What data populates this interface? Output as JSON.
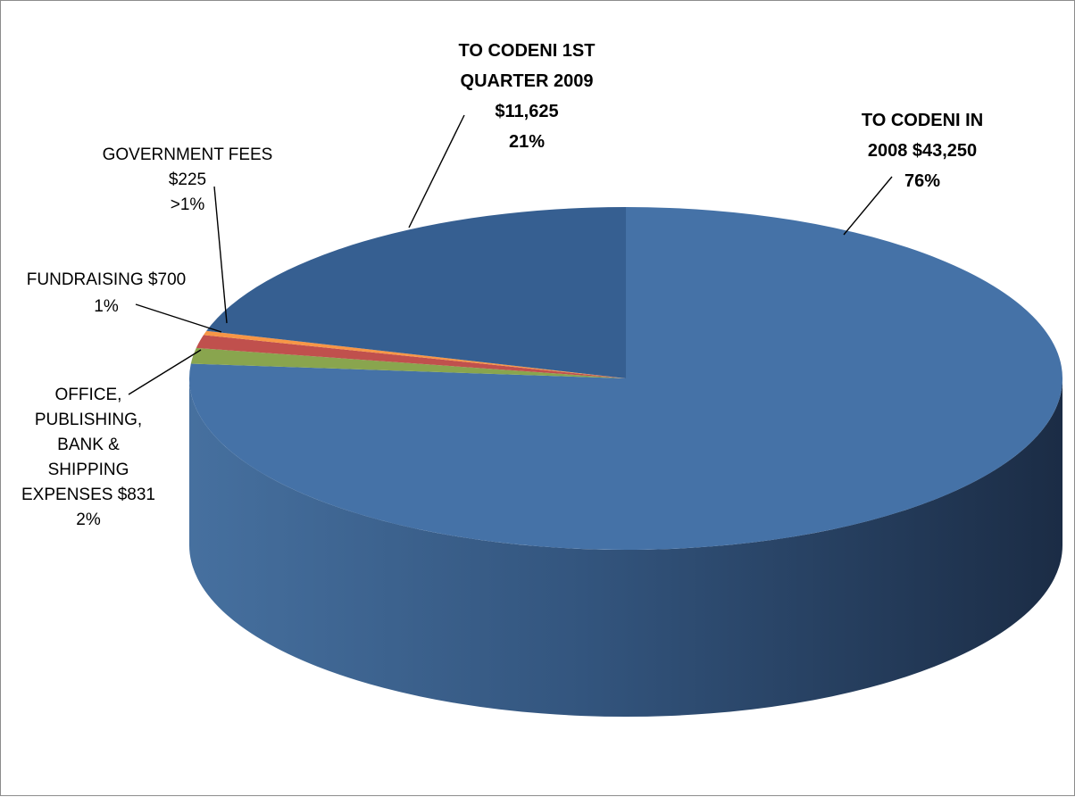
{
  "chart_data": {
    "type": "pie",
    "title": "",
    "start_angle_deg": -90,
    "slices": [
      {
        "key": "codeni-2008",
        "value": 43250,
        "label_lines": [
          "TO CODENI IN",
          "2008 $43,250",
          "76%"
        ],
        "bold": true,
        "color": "#4572A7",
        "side_color": "#2E4D73"
      },
      {
        "key": "office-publishing",
        "value": 831,
        "label_lines": [
          "OFFICE,",
          "PUBLISHING,",
          "BANK &",
          "SHIPPING",
          "EXPENSES $831",
          "2%"
        ],
        "bold": false,
        "color": "#89A54E",
        "side_color": "#5E7335"
      },
      {
        "key": "fundraising",
        "value": 700,
        "label_lines": [
          "FUNDRAISING $700",
          "1%"
        ],
        "bold": false,
        "color": "#C0504D",
        "side_color": "#7F3331"
      },
      {
        "key": "government-fees",
        "value": 225,
        "label_lines": [
          "GOVERNMENT FEES",
          "$225",
          ">1%"
        ],
        "bold": false,
        "color": "#F79646",
        "side_color": "#B86A2C"
      },
      {
        "key": "codeni-q1-2009",
        "value": 11625,
        "label_lines": [
          "TO CODENI 1ST",
          "QUARTER 2009",
          "$11,625",
          "21%"
        ],
        "bold": true,
        "color": "#365F91",
        "side_color": "#223D5E"
      }
    ]
  }
}
